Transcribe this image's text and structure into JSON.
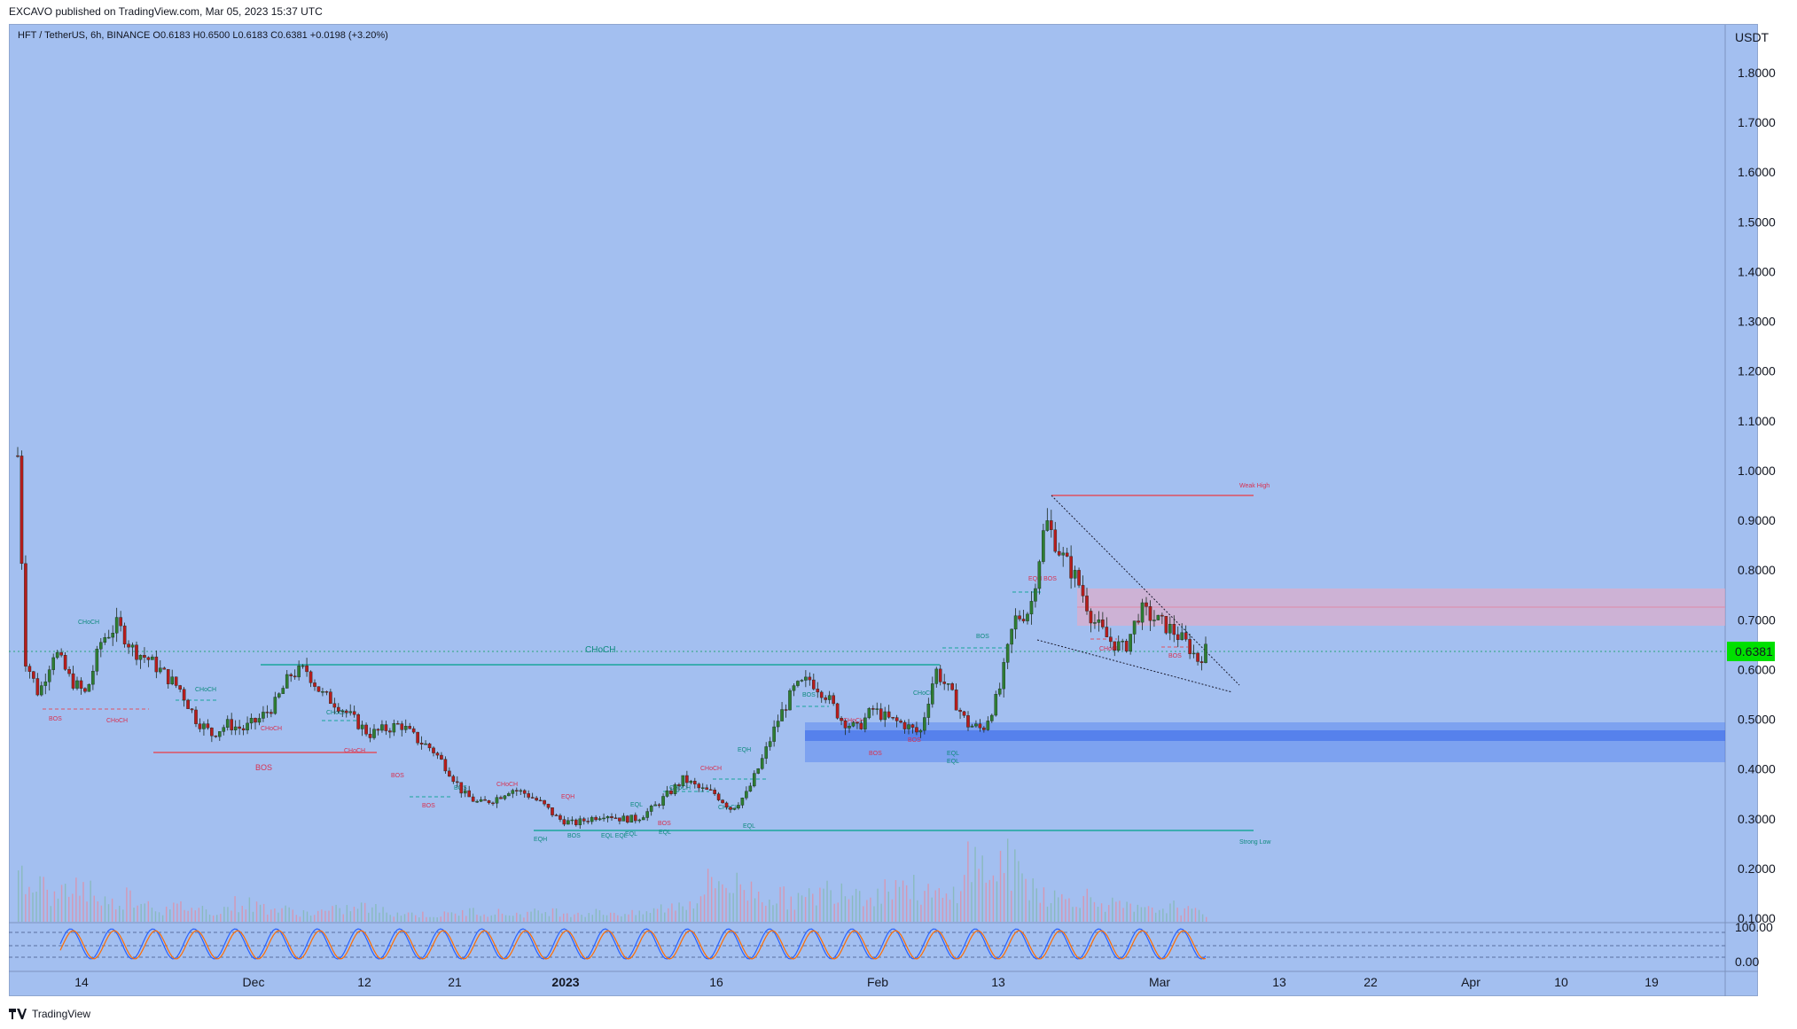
{
  "header": {
    "published": "EXCAVO published on TradingView.com, Mar 05, 2023 15:37 UTC",
    "symbol_line": "HFT / TetherUS, 6h, BINANCE  O0.6183  H0.6500  L0.6183  C0.6381  +0.0198 (+3.20%)",
    "currency": "USDT"
  },
  "footer": {
    "brand": "TradingView"
  },
  "colors": {
    "background": "#a3bff0",
    "up": "#2e7d32",
    "down": "#b71c1c",
    "last": "#00e000",
    "bos_red": "#e05060",
    "bos_teal": "#1aa69a",
    "blue_zone": "#4f7ff0",
    "red_zone": "#f0a8c0"
  },
  "chart_data": {
    "type": "candlestick",
    "symbol": "HFT / TetherUS",
    "interval": "6h",
    "exchange": "BINANCE",
    "ohlc": {
      "open": 0.6183,
      "high": 0.65,
      "low": 0.6183,
      "close": 0.6381,
      "change": 0.0198,
      "change_pct": 3.2
    },
    "last_price": 0.6381,
    "last_price_label": "0.6381",
    "y_axis": {
      "ticks": [
        "1.8000",
        "1.7000",
        "1.6000",
        "1.5000",
        "1.4000",
        "1.3000",
        "1.2000",
        "1.1000",
        "1.0000",
        "0.9000",
        "0.8000",
        "0.7000",
        "0.6000",
        "0.5000",
        "0.4000",
        "0.3000",
        "0.2000",
        "0.1000"
      ],
      "range": [
        0.05,
        1.85
      ]
    },
    "x_axis": {
      "ticks": [
        "14",
        "Dec",
        "12",
        "21",
        "2023",
        "16",
        "Feb",
        "13",
        "Mar",
        "13",
        "22",
        "Apr",
        "10",
        "19"
      ]
    },
    "close_path": [
      [
        0,
        1.03
      ],
      [
        3,
        0.62
      ],
      [
        8,
        0.55
      ],
      [
        14,
        0.64
      ],
      [
        20,
        0.58
      ],
      [
        26,
        0.55
      ],
      [
        32,
        0.66
      ],
      [
        38,
        0.69
      ],
      [
        44,
        0.64
      ],
      [
        50,
        0.62
      ],
      [
        56,
        0.59
      ],
      [
        62,
        0.56
      ],
      [
        68,
        0.5
      ],
      [
        74,
        0.47
      ],
      [
        80,
        0.49
      ],
      [
        86,
        0.48
      ],
      [
        92,
        0.5
      ],
      [
        98,
        0.53
      ],
      [
        104,
        0.59
      ],
      [
        110,
        0.6
      ],
      [
        116,
        0.55
      ],
      [
        122,
        0.53
      ],
      [
        128,
        0.5
      ],
      [
        134,
        0.47
      ],
      [
        140,
        0.48
      ],
      [
        146,
        0.49
      ],
      [
        152,
        0.46
      ],
      [
        158,
        0.44
      ],
      [
        164,
        0.4
      ],
      [
        170,
        0.35
      ],
      [
        176,
        0.33
      ],
      [
        182,
        0.34
      ],
      [
        188,
        0.36
      ],
      [
        194,
        0.35
      ],
      [
        200,
        0.33
      ],
      [
        206,
        0.3
      ],
      [
        212,
        0.29
      ],
      [
        218,
        0.3
      ],
      [
        224,
        0.31
      ],
      [
        230,
        0.3
      ],
      [
        236,
        0.3
      ],
      [
        242,
        0.32
      ],
      [
        248,
        0.35
      ],
      [
        254,
        0.38
      ],
      [
        260,
        0.36
      ],
      [
        266,
        0.35
      ],
      [
        272,
        0.32
      ],
      [
        278,
        0.35
      ],
      [
        284,
        0.42
      ],
      [
        290,
        0.5
      ],
      [
        296,
        0.56
      ],
      [
        302,
        0.58
      ],
      [
        308,
        0.55
      ],
      [
        314,
        0.5
      ],
      [
        320,
        0.48
      ],
      [
        326,
        0.52
      ],
      [
        332,
        0.5
      ],
      [
        338,
        0.49
      ],
      [
        344,
        0.47
      ],
      [
        350,
        0.6
      ],
      [
        356,
        0.55
      ],
      [
        362,
        0.49
      ],
      [
        368,
        0.48
      ],
      [
        374,
        0.55
      ],
      [
        380,
        0.7
      ],
      [
        386,
        0.72
      ],
      [
        392,
        0.9
      ],
      [
        398,
        0.83
      ],
      [
        404,
        0.78
      ],
      [
        410,
        0.7
      ],
      [
        416,
        0.66
      ],
      [
        422,
        0.64
      ],
      [
        428,
        0.72
      ],
      [
        434,
        0.7
      ],
      [
        440,
        0.68
      ],
      [
        446,
        0.65
      ],
      [
        450,
        0.62
      ],
      [
        453,
        0.638
      ]
    ],
    "volume_profile": [
      0.5,
      0.4,
      0.2,
      0.35,
      0.3,
      0.15,
      0.25,
      0.2,
      0.1,
      0.15,
      0.12,
      0.1,
      0.18,
      0.15,
      0.12,
      0.1,
      0.08,
      0.1,
      0.12,
      0.14,
      0.1,
      0.08,
      0.07,
      0.06,
      0.08,
      0.1,
      0.09,
      0.07,
      0.08,
      0.1,
      0.09,
      0.08,
      0.09,
      0.08,
      0.07,
      0.12,
      0.15,
      0.2,
      0.4,
      0.35,
      0.3,
      0.25,
      0.22,
      0.2,
      0.28,
      0.35,
      0.3,
      0.25,
      0.4,
      0.3,
      0.25,
      0.2,
      0.6,
      0.45,
      0.55,
      0.4,
      0.3,
      0.2,
      0.25,
      0.2,
      0.15,
      0.12,
      0.1,
      0.15,
      0.1,
      0.08
    ],
    "annotations": {
      "choch_main": "CHoCH",
      "weak_high": "Weak High",
      "strong_low": "Strong Low",
      "bos_big": "BOS",
      "small_labels": [
        "BOS",
        "CHoCH",
        "CHoCH",
        "CHoCH",
        "CHoCH",
        "CHoCH",
        "CHoCH",
        "BOS",
        "BOS",
        "BOS",
        "CHoCH",
        "EQH",
        "EQH",
        "BOS",
        "EQL EQL",
        "EQL",
        "EQL",
        "EQL",
        "BOS",
        "CHoCH",
        "CHoCH",
        "EQH",
        "CHoCH",
        "EQL",
        "BOS",
        "CHoCH",
        "BOS",
        "EQL",
        "BOS",
        "CHoCH",
        "EQL",
        "BOS",
        "EQH BOS",
        "CHoCH",
        "BOS"
      ]
    },
    "oscillator": {
      "ticks": [
        "100.00",
        "0.00"
      ]
    }
  }
}
